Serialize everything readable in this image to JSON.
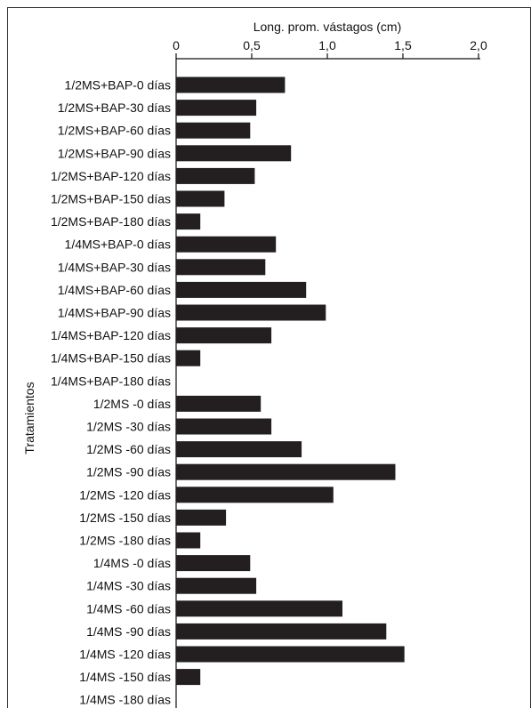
{
  "chart_data": {
    "type": "bar",
    "orientation": "horizontal",
    "xlabel": "Long. prom. vástagos (cm)",
    "ylabel": "Tratamientos",
    "xlim": [
      0,
      2
    ],
    "xticks": [
      "0",
      "0,5",
      "1,0",
      "1,5",
      "2,0"
    ],
    "xtick_values": [
      0,
      0.5,
      1.0,
      1.5,
      2.0
    ],
    "axis_position": "top",
    "grid": false,
    "bar_color": "#231f20",
    "categories": [
      "1/2MS+BAP-0 días",
      "1/2MS+BAP-30 días",
      "1/2MS+BAP-60 días",
      "1/2MS+BAP-90 días",
      "1/2MS+BAP-120 días",
      "1/2MS+BAP-150 días",
      "1/2MS+BAP-180 días",
      "1/4MS+BAP-0 días",
      "1/4MS+BAP-30 días",
      "1/4MS+BAP-60 días",
      "1/4MS+BAP-90 días",
      "1/4MS+BAP-120 días",
      "1/4MS+BAP-150 días",
      "1/4MS+BAP-180 días",
      "1/2MS -0 días",
      "1/2MS -30 días",
      "1/2MS -60 días",
      "1/2MS -90 días",
      "1/2MS -120 días",
      "1/2MS -150 días",
      "1/2MS -180 días",
      "1/4MS -0 días",
      "1/4MS -30 días",
      "1/4MS -60 días",
      "1/4MS -90 días",
      "1/4MS -120 días",
      "1/4MS -150 días",
      "1/4MS -180 días"
    ],
    "values": [
      0.72,
      0.53,
      0.49,
      0.76,
      0.52,
      0.32,
      0.16,
      0.66,
      0.59,
      0.86,
      0.99,
      0.63,
      0.16,
      0,
      0.56,
      0.63,
      0.83,
      1.45,
      1.04,
      0.33,
      0.16,
      0.49,
      0.53,
      1.1,
      1.39,
      1.51,
      0.16,
      0
    ]
  }
}
